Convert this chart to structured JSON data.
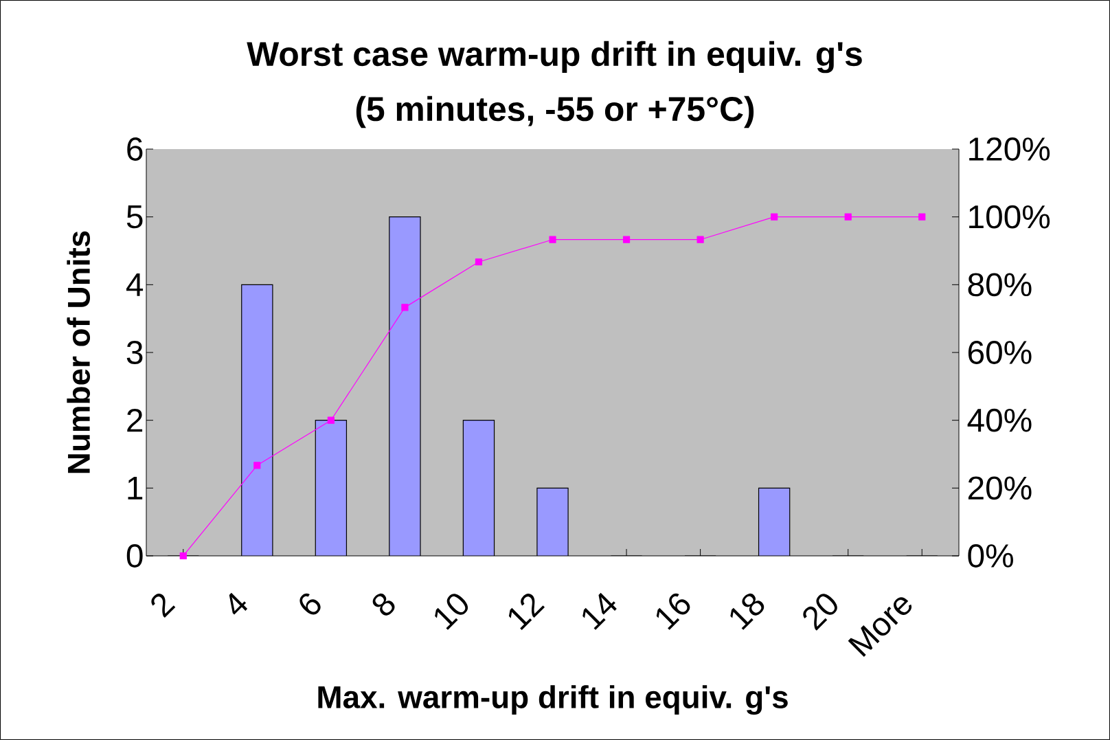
{
  "chart_data": {
    "type": "bar",
    "title": "Worst case warm-up drift in equiv. g's",
    "subtitle": "(5 minutes, -55 or +75°C)",
    "xlabel": "Max. warm-up drift in equiv. g's",
    "ylabel": "Number of Units",
    "categories": [
      "2",
      "4",
      "6",
      "8",
      "10",
      "12",
      "14",
      "16",
      "18",
      "20",
      "More"
    ],
    "series": [
      {
        "color": "#9999ff",
        "values": [
          0,
          4,
          2,
          5,
          2,
          1,
          0,
          0,
          1,
          0,
          0
        ]
      },
      {
        "type": "line",
        "axis": "y2",
        "color": "#ff00ff",
        "values": [
          0,
          26.7,
          40,
          73.3,
          86.7,
          93.3,
          93.3,
          93.3,
          100,
          100,
          100
        ]
      }
    ],
    "ylim": [
      0,
      6
    ],
    "yticks": [
      0,
      1,
      2,
      3,
      4,
      5,
      6
    ],
    "y2lim": [
      0,
      120
    ],
    "y2ticks": [
      {
        "value": 0,
        "label": "0%"
      },
      {
        "value": 20,
        "label": "20%"
      },
      {
        "value": 40,
        "label": "40%"
      },
      {
        "value": 60,
        "label": "60%"
      },
      {
        "value": 80,
        "label": "80%"
      },
      {
        "value": 100,
        "label": "100%"
      },
      {
        "value": 120,
        "label": "120%"
      }
    ],
    "marker": "square"
  }
}
